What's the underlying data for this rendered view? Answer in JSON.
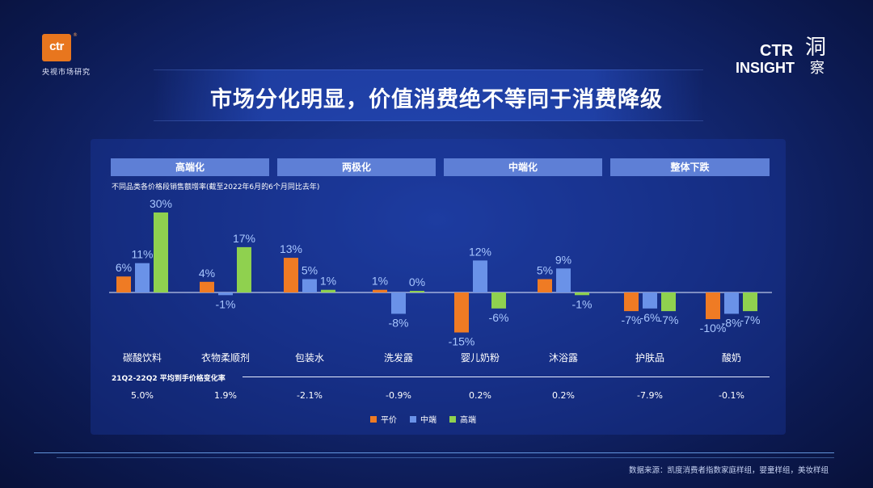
{
  "branding": {
    "logo_text": "ctr",
    "logo_reg": "®",
    "logo_cn": "央视市场研究",
    "insight_ctr": "CTR",
    "insight_insight": "INSIGHT",
    "insight_dong": "洞",
    "insight_cha": "察"
  },
  "title": "市场分化明显，价值消费绝不等同于消费降级",
  "headers": [
    "高端化",
    "两极化",
    "中端化",
    "整体下跌"
  ],
  "subtitle": "不同品类各价格段销售额增率(截至2022年6月的6个月同比去年)",
  "chart_data": {
    "type": "bar",
    "title": "不同品类各价格段销售额增率(截至2022年6月的6个月同比去年)",
    "categories": [
      "碳酸饮料",
      "衣物柔顺剂",
      "包装水",
      "洗发露",
      "婴儿奶粉",
      "沐浴露",
      "护肤品",
      "酸奶"
    ],
    "series": [
      {
        "name": "平价",
        "color": "#ef7b24",
        "values": [
          6,
          4,
          13,
          1,
          -15,
          5,
          -7,
          -10
        ],
        "labels": [
          "6%",
          "4%",
          "13%",
          "1%",
          "-15%",
          "5%",
          "-7%",
          "-10%"
        ]
      },
      {
        "name": "中端",
        "color": "#6a92e8",
        "values": [
          11,
          -1,
          5,
          -8,
          12,
          9,
          -6,
          -8
        ],
        "labels": [
          "11%",
          "-1%",
          "5%",
          "-8%",
          "12%",
          "9%",
          "-6%",
          "-8%"
        ]
      },
      {
        "name": "高端",
        "color": "#8fd14f",
        "values": [
          30,
          17,
          1,
          0,
          -6,
          -1,
          -7,
          -7
        ],
        "labels": [
          "30%",
          "17%",
          "1%",
          "0%",
          "-6%",
          "-1%",
          "-7%",
          "-7%"
        ]
      }
    ],
    "ylim": [
      -20,
      32
    ],
    "unit": "%"
  },
  "price_change": {
    "title": "21Q2-22Q2 平均到手价格变化率",
    "values": [
      "5.0%",
      "1.9%",
      "-2.1%",
      "-0.9%",
      "0.2%",
      "0.2%",
      "-7.9%",
      "-0.1%"
    ]
  },
  "legend": [
    "平价",
    "中端",
    "高端"
  ],
  "source": "数据来源：凯度消费者指数家庭样组，婴童样组，美妆样组"
}
